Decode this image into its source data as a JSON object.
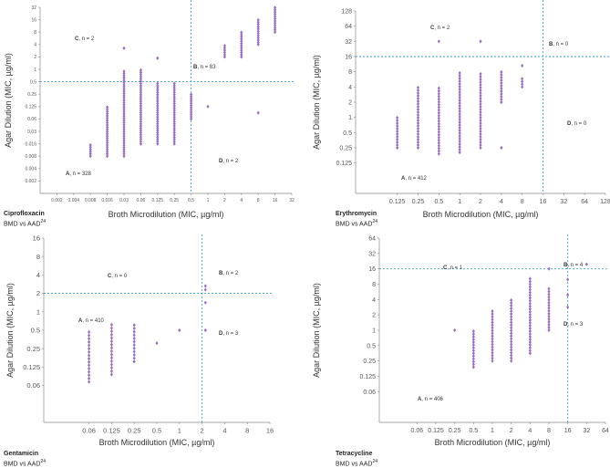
{
  "colors": {
    "point": "#9b6fbf",
    "cutoff": "#3a9fd1",
    "axis": "#888888",
    "text": "#333333"
  },
  "panels": [
    {
      "drug": "Ciprofloxacin",
      "subtitle": "BMD vs AAD",
      "subtitle_ref": "24",
      "chart_data": {
        "type": "scatter",
        "xlabel": "Broth Microdilution (MIC, µg/ml)",
        "ylabel": "Agar Dilution (MIC, µg/ml)",
        "x_ticks": [
          "0.002",
          "0.004",
          "0.008",
          "0.016",
          "0.03",
          "0.06",
          "0.125",
          "0.25",
          "0.5",
          "1",
          "2",
          "4",
          "8",
          "16",
          "32"
        ],
        "y_ticks": [
          "0.002",
          "0.004",
          "0.008",
          "0.016",
          "0.03",
          "0.06",
          "0.125",
          "0.25",
          "0.5",
          "1",
          "2",
          "4",
          "8",
          "16",
          "32"
        ],
        "x_cutoff": "0.5",
        "y_cutoff": "0.5",
        "quadrants": [
          {
            "letter": "A",
            "count": "328",
            "text": ", n = 328",
            "pos": "bottom-left"
          },
          {
            "letter": "B",
            "count": "83",
            "text": ", n = 83",
            "pos": "top-right"
          },
          {
            "letter": "C",
            "count": "2",
            "text": ", n = 2",
            "pos": "top-left"
          },
          {
            "letter": "D",
            "count": "2",
            "text": ", n = 2",
            "pos": "bottom-right"
          }
        ],
        "columns": [
          {
            "x": 2,
            "ys": [
              2,
              3
            ]
          },
          {
            "x": 3,
            "ys": [
              2,
              3,
              4,
              5,
              6
            ]
          },
          {
            "x": 4,
            "ys": [
              2,
              3,
              4,
              5,
              6,
              7,
              8,
              9
            ]
          },
          {
            "x": 5,
            "ys": [
              3,
              4,
              5,
              6,
              7,
              8,
              9
            ]
          },
          {
            "x": 6,
            "ys": [
              3,
              4,
              5,
              6,
              7,
              8
            ]
          },
          {
            "x": 7,
            "ys": [
              3,
              4,
              5,
              6,
              7,
              8
            ]
          },
          {
            "x": 8,
            "ys": [
              5,
              6,
              7
            ]
          },
          {
            "x": 10,
            "ys": [
              10,
              11
            ]
          },
          {
            "x": 11,
            "ys": [
              10,
              11,
              12
            ]
          },
          {
            "x": 12,
            "ys": [
              11,
              12,
              13
            ]
          },
          {
            "x": 13,
            "ys": [
              12,
              13,
              14
            ]
          }
        ],
        "outliers": [
          [
            4,
            10.7
          ],
          [
            6,
            9.9
          ],
          [
            9,
            6
          ],
          [
            12,
            5.5
          ]
        ]
      }
    },
    {
      "drug": "Erythromycin",
      "subtitle": "BMD vs AAD",
      "subtitle_ref": "24",
      "chart_data": {
        "type": "scatter",
        "xlabel": "Broth Microdilution (MIC, µg/ml)",
        "ylabel": "Agar Dilution (MIC, µg/ml)",
        "x_ticks": [
          "",
          "0.125",
          "0.25",
          "0.5",
          "1",
          "2",
          "4",
          "8",
          "16",
          "32",
          "64",
          "128"
        ],
        "y_ticks": [
          "",
          "0.125",
          "0.25",
          "0.5",
          "1",
          "2",
          "4",
          "8",
          "16",
          "32",
          "64",
          "128"
        ],
        "x_cutoff": "16",
        "y_cutoff": "16",
        "quadrants": [
          {
            "letter": "A",
            "count": "412",
            "text": ", n = 412",
            "pos": "bottom-left"
          },
          {
            "letter": "B",
            "count": "0",
            "text": ", n = 0",
            "pos": "top-right"
          },
          {
            "letter": "C",
            "count": "2",
            "text": ", n = 2",
            "pos": "top-left"
          },
          {
            "letter": "D",
            "count": "0",
            "text": ", n = 0",
            "pos": "bottom-right"
          }
        ],
        "columns": [
          {
            "x": 1,
            "ys": [
              2,
              4
            ]
          },
          {
            "x": 2,
            "ys": [
              2,
              3,
              4,
              5,
              6
            ]
          },
          {
            "x": 3,
            "ys": [
              1.6,
              2,
              3,
              4,
              5,
              6
            ]
          },
          {
            "x": 4,
            "ys": [
              1.7,
              2,
              3,
              4,
              5,
              6,
              7
            ]
          },
          {
            "x": 5,
            "ys": [
              2,
              3,
              4,
              5,
              6,
              7
            ]
          },
          {
            "x": 6,
            "ys": [
              5,
              6,
              7
            ]
          },
          {
            "x": 7,
            "ys": [
              6,
              6.6
            ]
          }
        ],
        "outliers": [
          [
            3,
            9
          ],
          [
            5,
            9
          ],
          [
            6,
            2
          ],
          [
            7,
            7.4
          ]
        ]
      }
    },
    {
      "drug": "Gentamicin",
      "subtitle": "BMD vs AAD",
      "subtitle_ref": "24",
      "chart_data": {
        "type": "scatter",
        "xlabel": "Broth Microdilution (MIC, µg/ml)",
        "ylabel": "Agar Dilution (MIC, µg/ml)",
        "x_ticks": [
          "",
          "0.06",
          "0.125",
          "0.25",
          "0.5",
          "1",
          "2",
          "4",
          "8",
          "16"
        ],
        "y_ticks": [
          "",
          "0.06",
          "0.125",
          "0.25",
          "0.5",
          "1",
          "2",
          "4",
          "8",
          "16"
        ],
        "x_cutoff": "2",
        "y_cutoff": "2",
        "quadrants": [
          {
            "letter": "A",
            "count": "410",
            "text": ", n = 410",
            "pos": "bottom-left"
          },
          {
            "letter": "B",
            "count": "2",
            "text": ", n = 2",
            "pos": "top-right"
          },
          {
            "letter": "C",
            "count": "0",
            "text": ", n = 0",
            "pos": "top-left"
          },
          {
            "letter": "D",
            "count": "3",
            "text": ", n = 3",
            "pos": "bottom-right"
          }
        ],
        "columns": [
          {
            "x": 1,
            "ys": [
              1.2,
              2,
              3,
              4
            ]
          },
          {
            "x": 2,
            "ys": [
              1.6,
              2,
              3,
              4,
              4.3
            ]
          },
          {
            "x": 3,
            "ys": [
              2.3,
              3,
              4,
              4.3
            ]
          }
        ],
        "outliers": [
          [
            4,
            3.3
          ],
          [
            5,
            4
          ],
          [
            6.15,
            4
          ],
          [
            6.15,
            5.5
          ],
          [
            6.15,
            6.2
          ],
          [
            6.15,
            6.4
          ]
        ]
      }
    },
    {
      "drug": "Tetracycline",
      "subtitle": "BMD vs AAD",
      "subtitle_ref": "24",
      "chart_data": {
        "type": "scatter",
        "xlabel": "Broth Microdilution (MIC, µg/ml)",
        "ylabel": "Agar Dilution (MIC, µg/ml)",
        "x_ticks": [
          "",
          "0.06",
          "0.125",
          "0.25",
          "0.5",
          "1",
          "2",
          "4",
          "8",
          "16",
          "32",
          "64"
        ],
        "y_ticks": [
          "",
          "0.06",
          "0.125",
          "0.25",
          "0.5",
          "1",
          "2",
          "4",
          "8",
          "16",
          "32",
          "64"
        ],
        "x_cutoff": "16",
        "y_cutoff": "16",
        "quadrants": [
          {
            "letter": "A",
            "count": "406",
            "text": ", n = 406",
            "pos": "bottom-left"
          },
          {
            "letter": "B",
            "count": "4",
            "text": ", n = 4",
            "pos": "top-right"
          },
          {
            "letter": "C",
            "count": "1",
            "text": ", n = 1",
            "pos": "top-left"
          },
          {
            "letter": "D",
            "count": "3",
            "text": ", n = 3",
            "pos": "bottom-right"
          }
        ],
        "columns": [
          {
            "x": 4,
            "ys": [
              2.6,
              3,
              4,
              5
            ]
          },
          {
            "x": 5,
            "ys": [
              3,
              4,
              5,
              6,
              6.3
            ]
          },
          {
            "x": 6,
            "ys": [
              3,
              4,
              5,
              6,
              7
            ]
          },
          {
            "x": 7,
            "ys": [
              3.5,
              4,
              5,
              6,
              7,
              8,
              8.5
            ]
          },
          {
            "x": 8,
            "ys": [
              5,
              6,
              7,
              7.7
            ]
          }
        ],
        "outliers": [
          [
            3,
            5
          ],
          [
            8,
            9
          ],
          [
            9,
            6.5
          ],
          [
            9,
            7.3
          ],
          [
            9,
            8.3
          ],
          [
            10,
            9.3
          ]
        ]
      }
    }
  ]
}
